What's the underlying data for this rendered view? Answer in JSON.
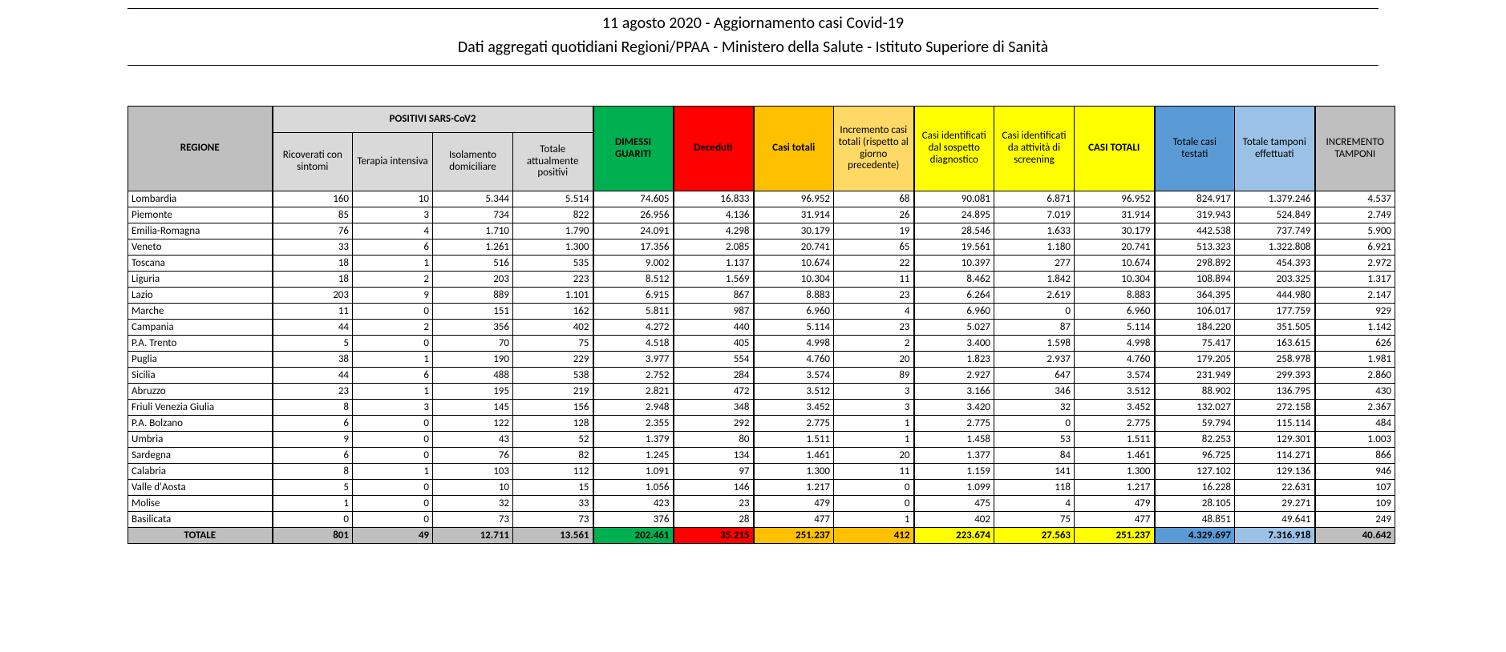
{
  "title": {
    "line1": "11 agosto 2020 - Aggiornamento casi Covid-19",
    "line2": "Dati aggregati quotidiani Regioni/PPAA - Ministero della Salute - Istituto Superiore di Sanità"
  },
  "headers": {
    "regione": "REGIONE",
    "positivi_group": "POSITIVI SARS-CoV2",
    "ricoverati": "Ricoverati con sintomi",
    "terapia": "Terapia intensiva",
    "isolamento": "Isolamento domiciliare",
    "tot_positivi": "Totale attualmente positivi",
    "guariti": "DIMESSI GUARITI",
    "deceduti": "Deceduti",
    "casi_totali": "Casi totali",
    "incremento_casi": "Incremento casi totali (rispetto al giorno precedente)",
    "sospetto": "Casi identificati dal sospetto diagnostico",
    "screening": "Casi identificati da attività di screening",
    "casi_totali_y": "CASI TOTALI",
    "testati": "Totale casi testati",
    "tamponi": "Totale tamponi effettuati",
    "incr_tamponi": "INCREMENTO TAMPONI"
  },
  "colors": {
    "grey": "#bfbfbf",
    "lgrey": "#d9d9d9",
    "green": "#00b050",
    "red": "#ff0000",
    "orange": "#ffc000",
    "lorange": "#ffd966",
    "yellow": "#ffff00",
    "blue1": "#5b9bd5",
    "blue2": "#9bc2e6"
  },
  "rows": [
    {
      "r": "Lombardia",
      "v": [
        "160",
        "10",
        "5.344",
        "5.514",
        "74.605",
        "16.833",
        "96.952",
        "68",
        "90.081",
        "6.871",
        "96.952",
        "824.917",
        "1.379.246",
        "4.537"
      ]
    },
    {
      "r": "Piemonte",
      "v": [
        "85",
        "3",
        "734",
        "822",
        "26.956",
        "4.136",
        "31.914",
        "26",
        "24.895",
        "7.019",
        "31.914",
        "319.943",
        "524.849",
        "2.749"
      ]
    },
    {
      "r": "Emilia-Romagna",
      "v": [
        "76",
        "4",
        "1.710",
        "1.790",
        "24.091",
        "4.298",
        "30.179",
        "19",
        "28.546",
        "1.633",
        "30.179",
        "442.538",
        "737.749",
        "5.900"
      ]
    },
    {
      "r": "Veneto",
      "v": [
        "33",
        "6",
        "1.261",
        "1.300",
        "17.356",
        "2.085",
        "20.741",
        "65",
        "19.561",
        "1.180",
        "20.741",
        "513.323",
        "1.322.808",
        "6.921"
      ]
    },
    {
      "r": "Toscana",
      "v": [
        "18",
        "1",
        "516",
        "535",
        "9.002",
        "1.137",
        "10.674",
        "22",
        "10.397",
        "277",
        "10.674",
        "298.892",
        "454.393",
        "2.972"
      ]
    },
    {
      "r": "Liguria",
      "v": [
        "18",
        "2",
        "203",
        "223",
        "8.512",
        "1.569",
        "10.304",
        "11",
        "8.462",
        "1.842",
        "10.304",
        "108.894",
        "203.325",
        "1.317"
      ]
    },
    {
      "r": "Lazio",
      "v": [
        "203",
        "9",
        "889",
        "1.101",
        "6.915",
        "867",
        "8.883",
        "23",
        "6.264",
        "2.619",
        "8.883",
        "364.395",
        "444.980",
        "2.147"
      ]
    },
    {
      "r": "Marche",
      "v": [
        "11",
        "0",
        "151",
        "162",
        "5.811",
        "987",
        "6.960",
        "4",
        "6.960",
        "0",
        "6.960",
        "106.017",
        "177.759",
        "929"
      ]
    },
    {
      "r": "Campania",
      "v": [
        "44",
        "2",
        "356",
        "402",
        "4.272",
        "440",
        "5.114",
        "23",
        "5.027",
        "87",
        "5.114",
        "184.220",
        "351.505",
        "1.142"
      ]
    },
    {
      "r": "P.A. Trento",
      "v": [
        "5",
        "0",
        "70",
        "75",
        "4.518",
        "405",
        "4.998",
        "2",
        "3.400",
        "1.598",
        "4.998",
        "75.417",
        "163.615",
        "626"
      ]
    },
    {
      "r": "Puglia",
      "v": [
        "38",
        "1",
        "190",
        "229",
        "3.977",
        "554",
        "4.760",
        "20",
        "1.823",
        "2.937",
        "4.760",
        "179.205",
        "258.978",
        "1.981"
      ]
    },
    {
      "r": "Sicilia",
      "v": [
        "44",
        "6",
        "488",
        "538",
        "2.752",
        "284",
        "3.574",
        "89",
        "2.927",
        "647",
        "3.574",
        "231.949",
        "299.393",
        "2.860"
      ]
    },
    {
      "r": "Abruzzo",
      "v": [
        "23",
        "1",
        "195",
        "219",
        "2.821",
        "472",
        "3.512",
        "3",
        "3.166",
        "346",
        "3.512",
        "88.902",
        "136.795",
        "430"
      ]
    },
    {
      "r": "Friuli Venezia Giulia",
      "v": [
        "8",
        "3",
        "145",
        "156",
        "2.948",
        "348",
        "3.452",
        "3",
        "3.420",
        "32",
        "3.452",
        "132.027",
        "272.158",
        "2.367"
      ]
    },
    {
      "r": "P.A. Bolzano",
      "v": [
        "6",
        "0",
        "122",
        "128",
        "2.355",
        "292",
        "2.775",
        "1",
        "2.775",
        "0",
        "2.775",
        "59.794",
        "115.114",
        "484"
      ]
    },
    {
      "r": "Umbria",
      "v": [
        "9",
        "0",
        "43",
        "52",
        "1.379",
        "80",
        "1.511",
        "1",
        "1.458",
        "53",
        "1.511",
        "82.253",
        "129.301",
        "1.003"
      ]
    },
    {
      "r": "Sardegna",
      "v": [
        "6",
        "0",
        "76",
        "82",
        "1.245",
        "134",
        "1.461",
        "20",
        "1.377",
        "84",
        "1.461",
        "96.725",
        "114.271",
        "866"
      ]
    },
    {
      "r": "Calabria",
      "v": [
        "8",
        "1",
        "103",
        "112",
        "1.091",
        "97",
        "1.300",
        "11",
        "1.159",
        "141",
        "1.300",
        "127.102",
        "129.136",
        "946"
      ]
    },
    {
      "r": "Valle d'Aosta",
      "v": [
        "5",
        "0",
        "10",
        "15",
        "1.056",
        "146",
        "1.217",
        "0",
        "1.099",
        "118",
        "1.217",
        "16.228",
        "22.631",
        "107"
      ]
    },
    {
      "r": "Molise",
      "v": [
        "1",
        "0",
        "32",
        "33",
        "423",
        "23",
        "479",
        "0",
        "475",
        "4",
        "479",
        "28.105",
        "29.271",
        "109"
      ]
    },
    {
      "r": "Basilicata",
      "v": [
        "0",
        "0",
        "73",
        "73",
        "376",
        "28",
        "477",
        "1",
        "402",
        "75",
        "477",
        "48.851",
        "49.641",
        "249"
      ]
    }
  ],
  "total": {
    "label": "TOTALE",
    "v": [
      "801",
      "49",
      "12.711",
      "13.561",
      "202.461",
      "35.215",
      "251.237",
      "412",
      "223.674",
      "27.563",
      "251.237",
      "4.329.697",
      "7.316.918",
      "40.642"
    ]
  },
  "total_bg": [
    "grey",
    "grey",
    "grey",
    "grey",
    "green",
    "red",
    "orange",
    "orange",
    "yellow",
    "yellow",
    "yellow",
    "blue1",
    "blue2",
    "grey"
  ]
}
